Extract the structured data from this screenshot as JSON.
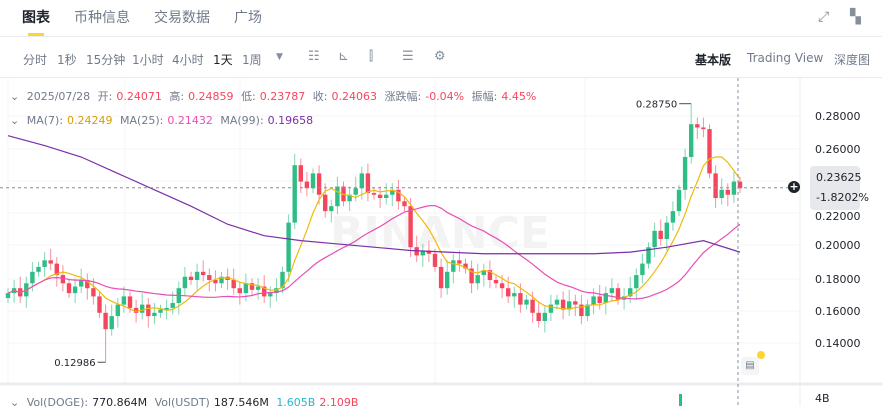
{
  "tabs": [
    "图表",
    "币种信息",
    "交易数据",
    "广场"
  ],
  "header_icons": [
    "expand-icon",
    "layout-icon"
  ],
  "intervals": [
    "分时",
    "1秒",
    "15分钟",
    "1小时",
    "4小时",
    "1天",
    "1周"
  ],
  "active_interval": "1天",
  "toolbar_icons": [
    "indicator-icon",
    "drawing-icon",
    "candle-type-icon",
    "settings-list-icon",
    "gear-icon"
  ],
  "views": [
    "基本版",
    "Trading View",
    "深度图"
  ],
  "active_view": "基本版",
  "ohlc_info": {
    "date": "2025/07/28",
    "open_label": "开:",
    "open": "0.24071",
    "high_label": "高:",
    "high": "0.24859",
    "low_label": "低:",
    "low": "0.23787",
    "close_label": "收:",
    "close": "0.24063",
    "change_label": "涨跌幅:",
    "change": "-0.04%",
    "amp_label": "振幅:",
    "amp": "4.45%"
  },
  "ma_info": {
    "ma7_label": "MA(7):",
    "ma7": "0.24249",
    "ma25_label": "MA(25):",
    "ma25": "0.21432",
    "ma99_label": "MA(99):",
    "ma99": "0.19658"
  },
  "vol_info": {
    "vol_doge_label": "Vol(DOGE):",
    "vol_doge": "770.864M",
    "vol_usdt_label": "Vol(USDT)",
    "vol_usdt": "187.546M",
    "v1": "1.605B",
    "v2": "2.109B",
    "axis": "4B"
  },
  "price_axis": [
    "0.28000",
    "0.26000",
    "0.24000",
    "0.22000",
    "0.20000",
    "0.18000",
    "0.16000",
    "0.14000"
  ],
  "current_price": {
    "price": "0.23625",
    "change": "-1.8202%"
  },
  "max_label": "0.28750",
  "min_label": "0.12986",
  "watermark": "BINANCE",
  "colors": {
    "up": "#2ebd85",
    "down": "#f6465d",
    "ma7": "#f0b90b",
    "ma25": "#e84fb5",
    "ma99": "#7b2fa8",
    "accent": "#fcd535"
  },
  "chart_data": {
    "type": "candlestick",
    "interval": "1天",
    "ylim": [
      0.125,
      0.29
    ],
    "closes": [
      0.172,
      0.175,
      0.17,
      0.178,
      0.185,
      0.188,
      0.192,
      0.19,
      0.183,
      0.178,
      0.172,
      0.176,
      0.18,
      0.175,
      0.17,
      0.16,
      0.15,
      0.158,
      0.165,
      0.17,
      0.163,
      0.16,
      0.165,
      0.158,
      0.16,
      0.162,
      0.163,
      0.166,
      0.175,
      0.182,
      0.18,
      0.185,
      0.183,
      0.18,
      0.178,
      0.182,
      0.18,
      0.175,
      0.172,
      0.178,
      0.174,
      0.176,
      0.17,
      0.172,
      0.175,
      0.185,
      0.215,
      0.25,
      0.24,
      0.236,
      0.245,
      0.232,
      0.222,
      0.225,
      0.237,
      0.228,
      0.232,
      0.236,
      0.245,
      0.233,
      0.232,
      0.23,
      0.232,
      0.235,
      0.228,
      0.225,
      0.2,
      0.195,
      0.198,
      0.196,
      0.188,
      0.175,
      0.185,
      0.192,
      0.19,
      0.187,
      0.178,
      0.183,
      0.186,
      0.18,
      0.178,
      0.175,
      0.17,
      0.172,
      0.165,
      0.168,
      0.16,
      0.155,
      0.16,
      0.165,
      0.168,
      0.162,
      0.167,
      0.165,
      0.158,
      0.165,
      0.17,
      0.166,
      0.172,
      0.175,
      0.168,
      0.17,
      0.175,
      0.183,
      0.19,
      0.2,
      0.21,
      0.205,
      0.215,
      0.222,
      0.235,
      0.255,
      0.275,
      0.273,
      0.272,
      0.245,
      0.23,
      0.235,
      0.232,
      0.24,
      0.236
    ],
    "ma99": [
      0.268,
      0.262,
      0.255,
      0.245,
      0.235,
      0.225,
      0.214,
      0.207,
      0.204,
      0.202,
      0.2,
      0.198,
      0.197,
      0.196,
      0.196,
      0.196,
      0.196,
      0.197,
      0.2,
      0.204,
      0.197
    ],
    "max": 0.2875,
    "min": 0.12986
  }
}
